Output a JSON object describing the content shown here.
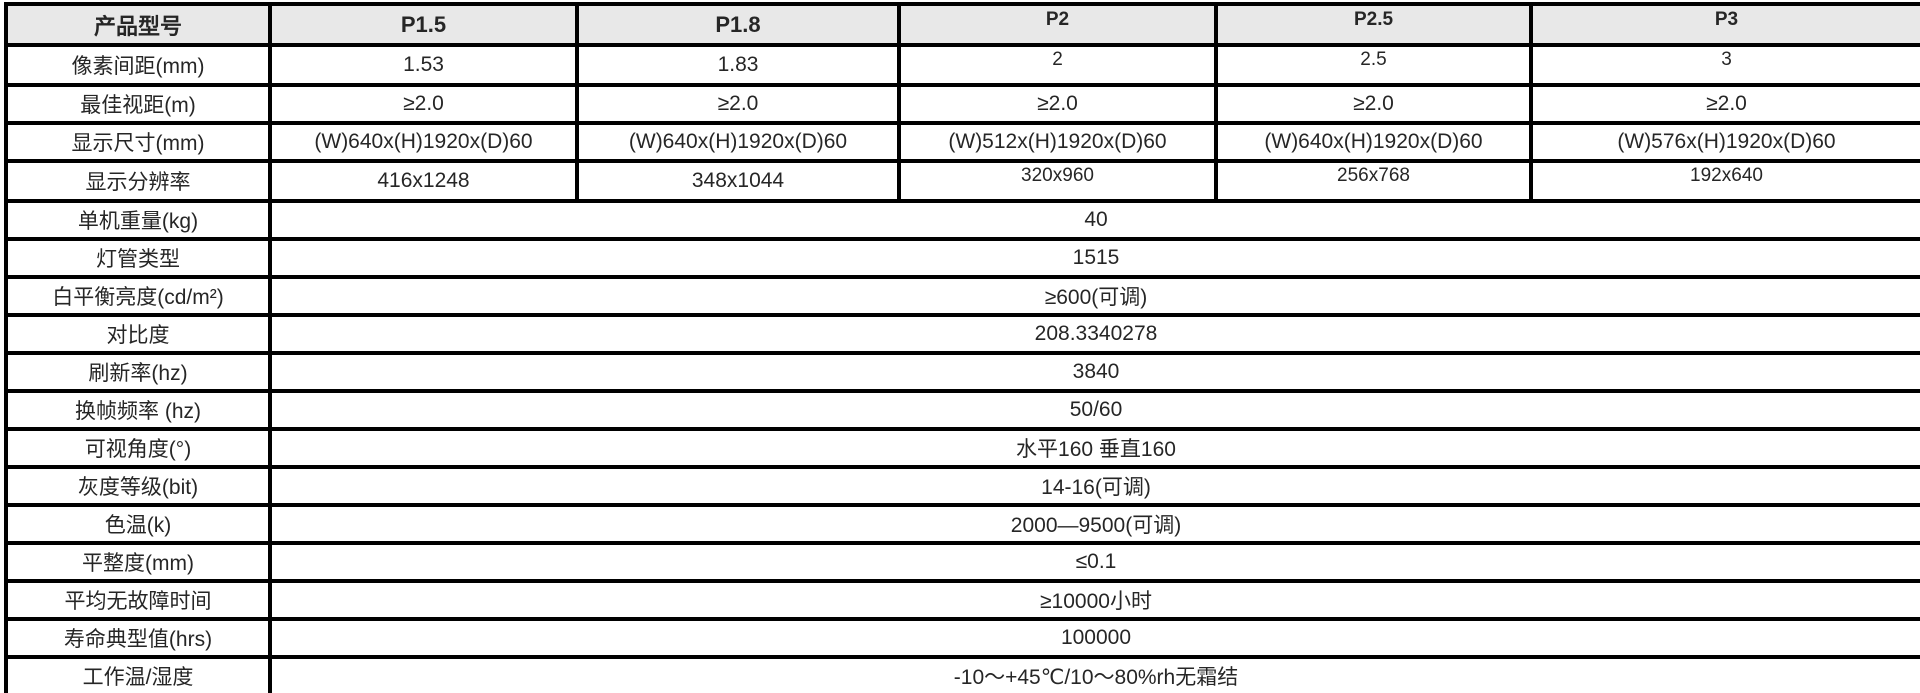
{
  "colors": {
    "header_bg": "#e8e8e8",
    "border": "#000000",
    "text": "#262626",
    "page_bg": "#ffffff"
  },
  "table": {
    "columns": [
      {
        "label": "产品型号"
      },
      {
        "label": "P1.5"
      },
      {
        "label": "P1.8"
      },
      {
        "label": "P2"
      },
      {
        "label": "P2.5"
      },
      {
        "label": "P3"
      }
    ],
    "rows": [
      {
        "label": "像素间距(mm)",
        "values": [
          "1.53",
          "1.83",
          "2",
          "2.5",
          "3"
        ]
      },
      {
        "label": "最佳视距(m)",
        "values": [
          "≥2.0",
          "≥2.0",
          "≥2.0",
          "≥2.0",
          "≥2.0"
        ]
      },
      {
        "label": "显示尺寸(mm)",
        "values": [
          "(W)640x(H)1920x(D)60",
          "(W)640x(H)1920x(D)60",
          "(W)512x(H)1920x(D)60",
          "(W)640x(H)1920x(D)60",
          "(W)576x(H)1920x(D)60"
        ]
      },
      {
        "label": "显示分辨率",
        "values": [
          "416x1248",
          "348x1044",
          "320x960",
          "256x768",
          "192x640"
        ]
      },
      {
        "label": "单机重量(kg)",
        "span_value": "40"
      },
      {
        "label": "灯管类型",
        "span_value": "1515"
      },
      {
        "label": "白平衡亮度(cd/m²)",
        "span_value": "≥600(可调)"
      },
      {
        "label": "对比度",
        "span_value": "208.3340278"
      },
      {
        "label": "刷新率(hz)",
        "span_value": "3840"
      },
      {
        "label": "换帧频率 (hz)",
        "span_value": "50/60"
      },
      {
        "label": "可视角度(°)",
        "span_value": "水平160 垂直160"
      },
      {
        "label": "灰度等级(bit)",
        "span_value": "14-16(可调)"
      },
      {
        "label": "色温(k)",
        "span_value": "2000—9500(可调)"
      },
      {
        "label": "平整度(mm)",
        "span_value": "≤0.1"
      },
      {
        "label": "平均无故障时间",
        "span_value": "≥10000小时"
      },
      {
        "label": "寿命典型值(hrs)",
        "span_value": "100000"
      },
      {
        "label": "工作温/湿度",
        "span_value": "-10～+45℃/10～80%rh无霜结"
      }
    ]
  }
}
